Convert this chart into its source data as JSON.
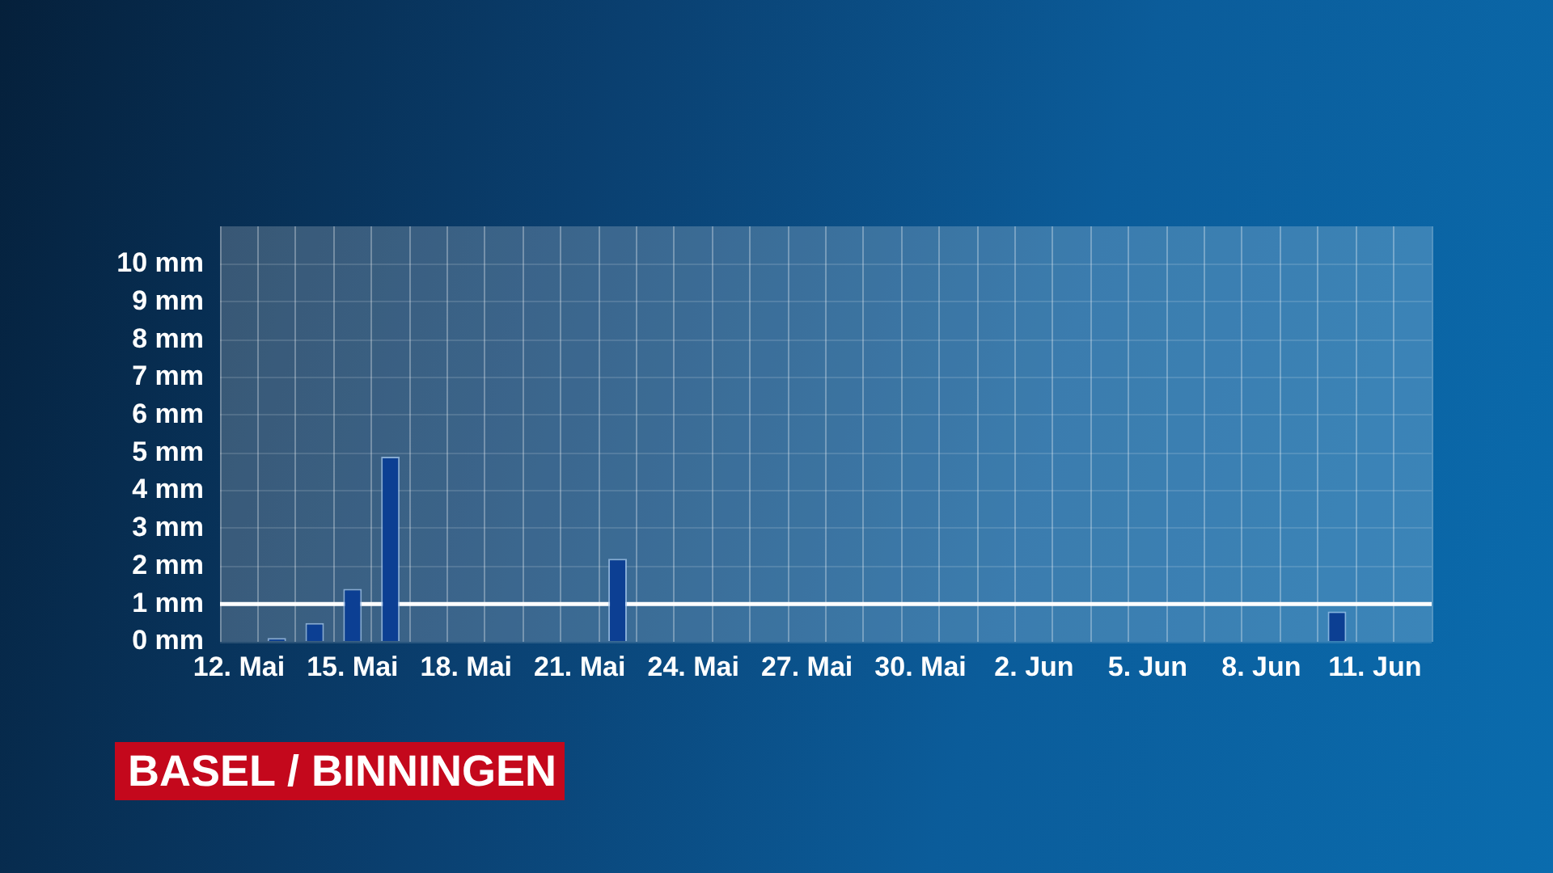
{
  "chart_data": {
    "type": "bar",
    "title": "BASEL / BINNINGEN",
    "categories": [
      "12. Mai",
      null,
      null,
      "15. Mai",
      null,
      null,
      "18. Mai",
      null,
      null,
      "21. Mai",
      null,
      null,
      "24. Mai",
      null,
      null,
      "27. Mai",
      null,
      null,
      "30. Mai",
      null,
      null,
      "2. Jun",
      null,
      null,
      "5. Jun",
      null,
      null,
      "8. Jun",
      null,
      null,
      "11. Jun",
      null
    ],
    "values": [
      0,
      0.1,
      0.5,
      1.4,
      4.9,
      0,
      0,
      0,
      0,
      0,
      2.2,
      0,
      0,
      0,
      0,
      0,
      0,
      0,
      0,
      0,
      0,
      0,
      0,
      0,
      0,
      0,
      0,
      0,
      0,
      0.8,
      0,
      0
    ],
    "color": "#0c3f93",
    "ylim": [
      0,
      11
    ],
    "yticks": [
      {
        "value": 0,
        "label": "0 mm"
      },
      {
        "value": 1,
        "label": "1 mm"
      },
      {
        "value": 2,
        "label": "2 mm"
      },
      {
        "value": 3,
        "label": "3 mm"
      },
      {
        "value": 4,
        "label": "4 mm"
      },
      {
        "value": 5,
        "label": "5 mm"
      },
      {
        "value": 6,
        "label": "6 mm"
      },
      {
        "value": 7,
        "label": "7 mm"
      },
      {
        "value": 8,
        "label": "8 mm"
      },
      {
        "value": 9,
        "label": "9 mm"
      },
      {
        "value": 10,
        "label": "10 mm"
      }
    ],
    "grid": true,
    "ref_lines": [
      {
        "axis": "y",
        "value": 1,
        "color": "#ffffff"
      }
    ]
  }
}
